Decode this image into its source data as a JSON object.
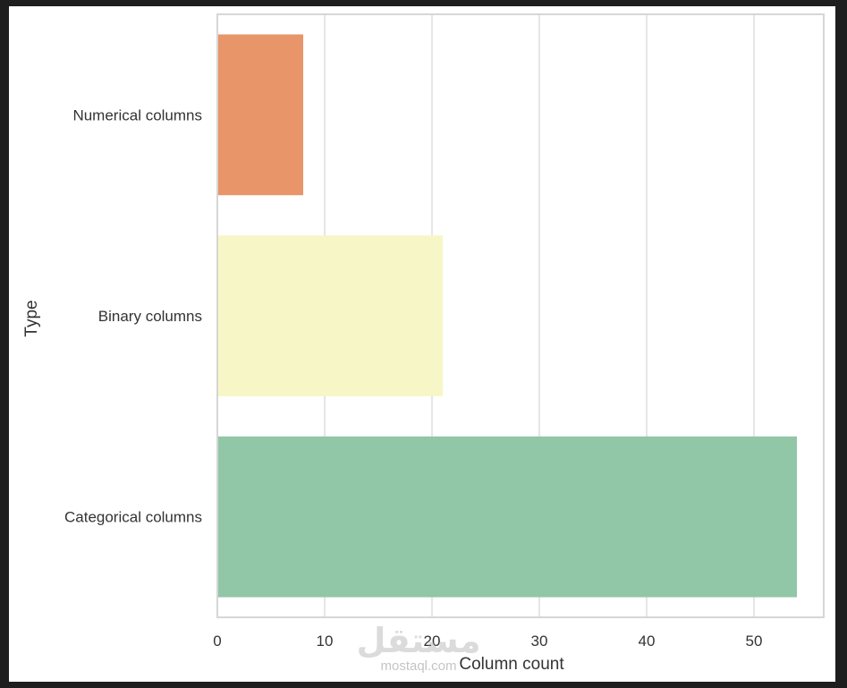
{
  "chart_data": {
    "type": "bar",
    "orientation": "horizontal",
    "categories": [
      "Numerical columns",
      "Binary columns",
      "Categorical columns"
    ],
    "values": [
      8,
      21,
      54
    ],
    "colors": [
      "#e8956a",
      "#f7f6c6",
      "#91c6a6"
    ],
    "xlabel": "Column count",
    "ylabel": "Type",
    "xlim": [
      0,
      56.5
    ],
    "xticks": [
      0,
      10,
      20,
      30,
      40,
      50
    ],
    "grid": "vertical"
  },
  "watermark": {
    "logo": "مستقل",
    "url": "mostaql.com"
  },
  "colors": {
    "background": "#1e1e1e",
    "plot_background": "#ffffff",
    "grid": "#dddddd",
    "spine": "#d6d6d6",
    "text": "#333333"
  }
}
